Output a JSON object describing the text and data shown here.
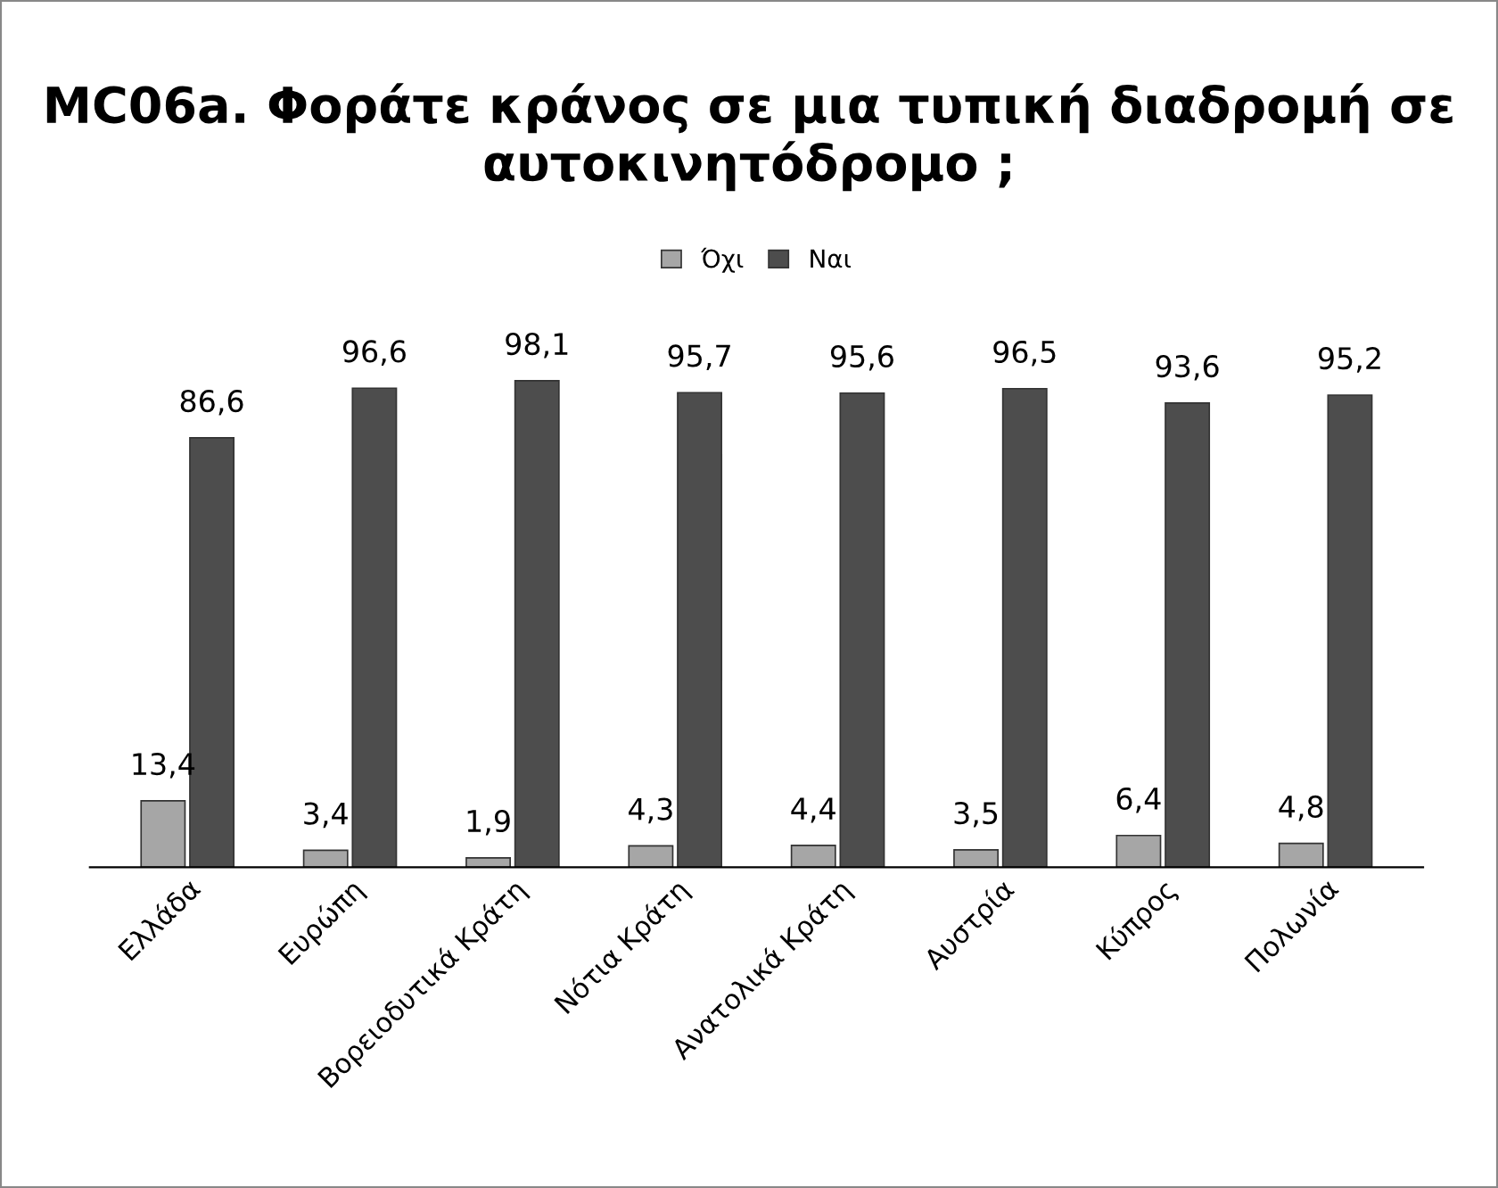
{
  "chart_data": {
    "type": "bar",
    "title": "MC06a. Φοράτε κράνος σε μια τυπική διαδρομή σε αυτοκινητόδρομο ;",
    "categories": [
      "Ελλάδα",
      "Ευρώπη",
      "Βορειοδυτικά Κράτη",
      "Νότια Κράτη",
      "Ανατολικά Κράτη",
      "Αυστρία",
      "Κύπρος",
      "Πολωνία"
    ],
    "series": [
      {
        "name": "Όχι",
        "color": "#a6a6a6",
        "values": [
          13.4,
          3.4,
          1.9,
          4.3,
          4.4,
          3.5,
          6.4,
          4.8
        ],
        "value_labels": [
          "13,4",
          "3,4",
          "1,9",
          "4,3",
          "4,4",
          "3,5",
          "6,4",
          "4,8"
        ]
      },
      {
        "name": "Ναι",
        "color": "#4d4d4d",
        "values": [
          86.6,
          96.6,
          98.1,
          95.7,
          95.6,
          96.5,
          93.6,
          95.2
        ],
        "value_labels": [
          "86,6",
          "96,6",
          "98,1",
          "95,7",
          "95,6",
          "96,5",
          "93,6",
          "95,2"
        ]
      }
    ],
    "tick_labels": "x",
    "legend": "top",
    "grid": false
  }
}
